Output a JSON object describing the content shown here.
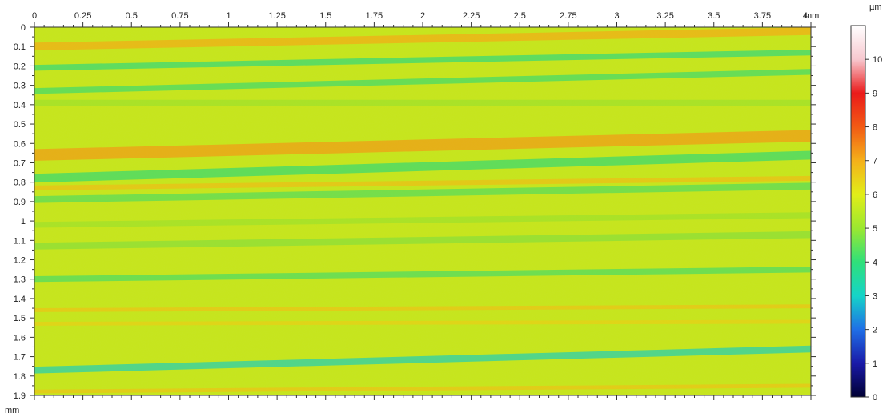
{
  "chart_data": {
    "type": "heatmap",
    "title": "",
    "x_unit": "mm",
    "y_unit": "mm",
    "xlim": [
      0,
      4
    ],
    "ylim": [
      0,
      1.9
    ],
    "x_ticks": [
      "0",
      "0.25",
      "0.5",
      "0.75",
      "1",
      "1.25",
      "1.5",
      "1.75",
      "2",
      "2.25",
      "2.5",
      "2.75",
      "3",
      "3.25",
      "3.5",
      "3.75",
      "4"
    ],
    "y_ticks": [
      "0",
      "0.1",
      "0.2",
      "0.3",
      "0.4",
      "0.5",
      "0.6",
      "0.7",
      "0.8",
      "0.9",
      "1",
      "1.1",
      "1.2",
      "1.3",
      "1.4",
      "1.5",
      "1.6",
      "1.7",
      "1.8",
      "1.9"
    ],
    "colorbar": {
      "unit": "µm",
      "min": 0,
      "max": 11,
      "ticks": [
        "0",
        "1",
        "2",
        "3",
        "4",
        "5",
        "6",
        "7",
        "8",
        "9",
        "10"
      ],
      "colors": [
        "#000033",
        "#1a1aa8",
        "#1f6fe6",
        "#15d4c8",
        "#2fe07a",
        "#9be830",
        "#e2ee18",
        "#f5b01a",
        "#f25a14",
        "#ea1a1a",
        "#f7c8cf",
        "#ffffff"
      ]
    },
    "background_value": 5.6,
    "bands": [
      {
        "y0": 0.1,
        "y1": 0.02,
        "value": 7.0,
        "width": 0.04
      },
      {
        "y0": 0.21,
        "y1": 0.13,
        "value": 3.9,
        "width": 0.03
      },
      {
        "y0": 0.33,
        "y1": 0.23,
        "value": 4.1,
        "width": 0.03
      },
      {
        "y0": 0.39,
        "y1": 0.39,
        "value": 5.0,
        "width": 0.03
      },
      {
        "y0": 0.66,
        "y1": 0.56,
        "value": 7.2,
        "width": 0.06
      },
      {
        "y0": 0.78,
        "y1": 0.66,
        "value": 4.0,
        "width": 0.045
      },
      {
        "y0": 0.83,
        "y1": 0.78,
        "value": 6.7,
        "width": 0.025
      },
      {
        "y0": 0.89,
        "y1": 0.82,
        "value": 4.3,
        "width": 0.035
      },
      {
        "y0": 1.02,
        "y1": 0.97,
        "value": 5.0,
        "width": 0.03
      },
      {
        "y0": 1.13,
        "y1": 1.07,
        "value": 4.8,
        "width": 0.035
      },
      {
        "y0": 1.3,
        "y1": 1.25,
        "value": 4.2,
        "width": 0.03
      },
      {
        "y0": 1.46,
        "y1": 1.44,
        "value": 6.6,
        "width": 0.02
      },
      {
        "y0": 1.53,
        "y1": 1.52,
        "value": 6.4,
        "width": 0.02
      },
      {
        "y0": 1.77,
        "y1": 1.66,
        "value": 3.1,
        "width": 0.035
      },
      {
        "y0": 1.88,
        "y1": 1.85,
        "value": 6.6,
        "width": 0.02
      }
    ]
  }
}
